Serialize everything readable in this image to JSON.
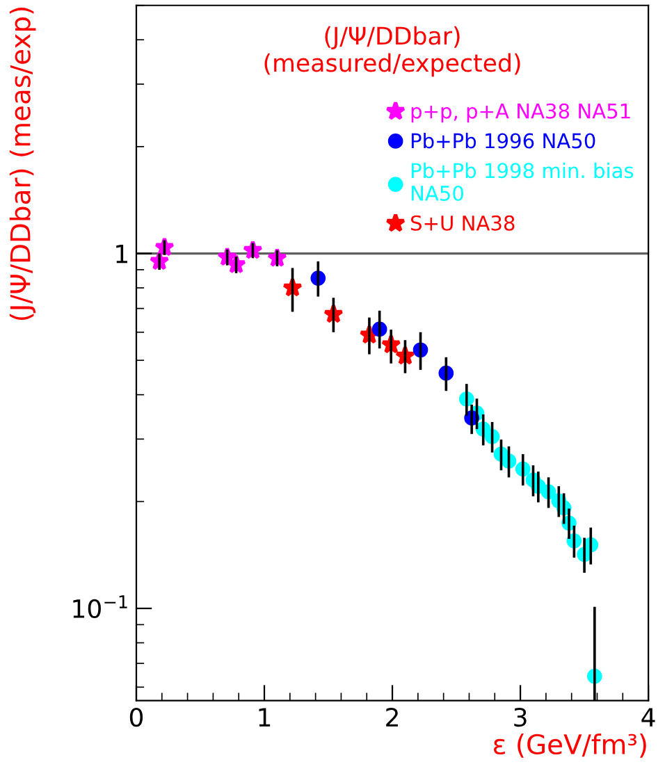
{
  "chart_data": {
    "type": "scatter",
    "title": "(J/Ψ/DDbar)\n(measured/expected)",
    "xlabel": "ε (GeV/fm³)",
    "ylabel": "(J/Ψ/DDbar) (meas/exp)",
    "log": "y",
    "xlim": [
      0,
      4
    ],
    "xticks": [
      0,
      1,
      2,
      3,
      4
    ],
    "ylim": [
      0.055,
      5
    ],
    "yticks": [
      {
        "value": 1,
        "label": "1"
      },
      {
        "value": 0.1,
        "label": "10$^{−1}$"
      }
    ],
    "grid": false,
    "legend": "top right",
    "ref_lines": [
      {
        "axis": "y",
        "value": 1,
        "color": "#606060",
        "line_style": "solid"
      }
    ],
    "series": [
      {
        "name": "p+p, p+A NA38 NA51",
        "color": "#ff00ff",
        "marker": "star",
        "x": [
          0.18,
          0.22,
          0.71,
          0.78,
          0.91,
          1.1
        ],
        "values": [
          0.95,
          1.04,
          0.976,
          0.93,
          1.02,
          0.97
        ],
        "errors": [
          0.05,
          0.05,
          0.05,
          0.05,
          0.05,
          0.05
        ]
      },
      {
        "name": "Pb+Pb 1996 NA50",
        "color": "#0000ff",
        "marker": "circle",
        "x": [
          1.42,
          1.9,
          2.22,
          2.42,
          2.62
        ],
        "values": [
          0.852,
          0.612,
          0.535,
          0.46,
          0.344
        ],
        "errors": [
          [
            0.756,
            0.95
          ],
          [
            0.54,
            0.69
          ],
          [
            0.47,
            0.6
          ],
          [
            0.41,
            0.51
          ],
          [
            0.31,
            0.375
          ]
        ]
      },
      {
        "name": "Pb+Pb 1998 min. bias\nNA50",
        "color": "#00ffff",
        "marker": "circle",
        "x": [
          2.58,
          2.66,
          2.71,
          2.78,
          2.85,
          2.91,
          3.02,
          3.1,
          3.14,
          3.22,
          3.3,
          3.34,
          3.38,
          3.42,
          3.5,
          3.55,
          3.58
        ],
        "values": [
          0.389,
          0.355,
          0.32,
          0.305,
          0.272,
          0.26,
          0.247,
          0.23,
          0.221,
          0.213,
          0.201,
          0.192,
          0.174,
          0.155,
          0.142,
          0.151,
          0.0644
        ],
        "errors": [
          0.04,
          0.035,
          0.032,
          0.03,
          0.027,
          0.026,
          0.025,
          0.023,
          0.022,
          0.021,
          0.02,
          0.019,
          0.017,
          0.016,
          0.016,
          0.018,
          [
            0.055,
            0.101
          ]
        ]
      },
      {
        "name": "S+U NA38",
        "color": "#ff0000",
        "marker": "star",
        "x": [
          1.22,
          1.54,
          1.82,
          1.99,
          2.1
        ],
        "values": [
          0.8,
          0.674,
          0.589,
          0.553,
          0.514
        ],
        "errors": [
          [
            0.685,
            0.91
          ],
          [
            0.6,
            0.75
          ],
          [
            0.52,
            0.66
          ],
          [
            0.49,
            0.61
          ],
          [
            0.46,
            0.57
          ]
        ]
      }
    ]
  }
}
